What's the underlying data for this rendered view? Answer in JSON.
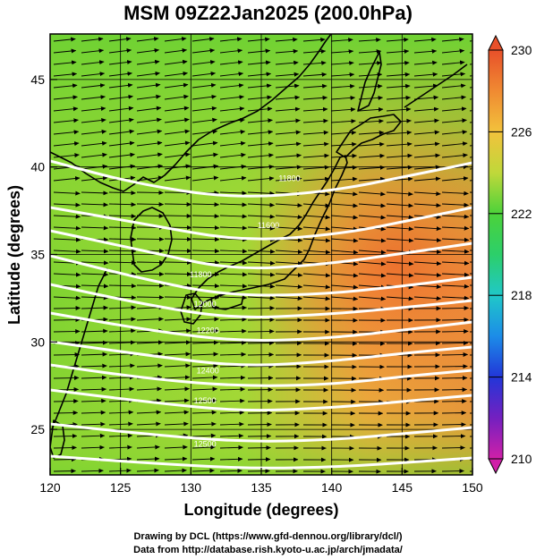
{
  "title": "MSM 09Z22Jan2025 (200.0hPa)",
  "xlabel": "Longitude (degrees)",
  "ylabel": "Latitude  (degrees)",
  "footer": {
    "line1": "Drawing by DCL (https://www.gfd-dennou.org/library/dcl/)",
    "line2": "Data from http://database.rish.kyoto-u.ac.jp/arch/jmadata/"
  },
  "chart_data": {
    "type": "heatmap",
    "title": "MSM 09Z22Jan2025 (200.0hPa)",
    "xlabel": "Longitude (degrees)",
    "ylabel": "Latitude  (degrees)",
    "xlim": [
      120,
      150
    ],
    "ylim": [
      22.4,
      47.6
    ],
    "x_ticks": [
      120,
      125,
      130,
      135,
      140,
      145,
      150
    ],
    "y_ticks": [
      25,
      30,
      35,
      40,
      45
    ],
    "grid": true,
    "colorbar": {
      "range": [
        210,
        230
      ],
      "tick_labels": [
        "230",
        "226",
        "222",
        "218",
        "214",
        "210"
      ],
      "tick_values": [
        230,
        226,
        222,
        218,
        214,
        210
      ]
    },
    "contour_labels": [
      {
        "text": "11800",
        "lon": 137.0,
        "lat": 39.2
      },
      {
        "text": "11600",
        "lon": 135.5,
        "lat": 36.5
      },
      {
        "text": "11800",
        "lon": 130.7,
        "lat": 33.7
      },
      {
        "text": "12000",
        "lon": 131.0,
        "lat": 32.0
      },
      {
        "text": "12200",
        "lon": 131.2,
        "lat": 30.5
      },
      {
        "text": "12400",
        "lon": 131.2,
        "lat": 28.2
      },
      {
        "text": "12500",
        "lon": 131.0,
        "lat": 26.5
      },
      {
        "text": "12500",
        "lon": 131.0,
        "lat": 24.0
      }
    ]
  }
}
